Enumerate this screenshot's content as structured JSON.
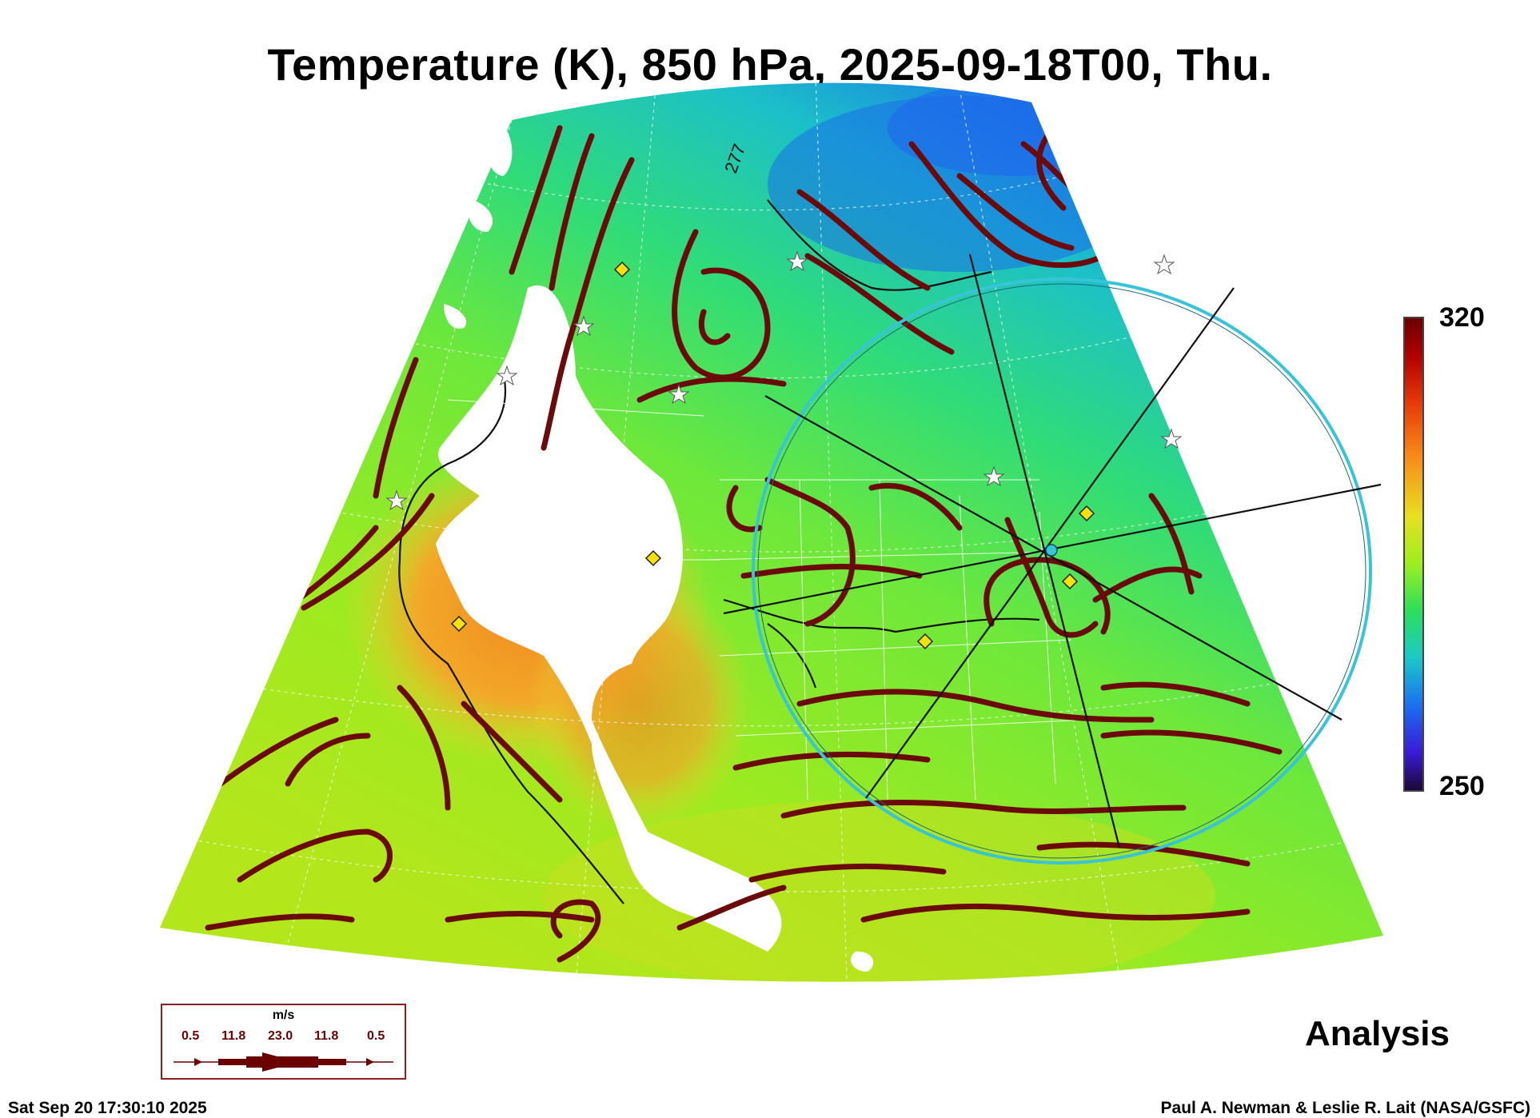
{
  "title": "Temperature (K), 850 hPa, 2025-09-18T00, Thu.",
  "colorbar": {
    "max_label": "320",
    "min_label": "250",
    "range": [
      250,
      320
    ],
    "colors": [
      "#6b0000",
      "#e83a0a",
      "#f7901a",
      "#e8e020",
      "#9cee20",
      "#2ce05a",
      "#1cc8c8",
      "#1a70f0",
      "#3a1ad8",
      "#1c0838"
    ]
  },
  "map": {
    "contour_label": "277",
    "streamline_color": "#6b0a0a",
    "circle_color": "#38c4d8",
    "undefined_color": "#ffffff"
  },
  "wind_legend": {
    "unit": "m/s",
    "values": [
      "0.5",
      "11.8",
      "23.0",
      "11.8",
      "0.5"
    ]
  },
  "panel_label": "Analysis",
  "timestamp": "Sat Sep 20 17:30:10 2025",
  "credit": "Paul A. Newman & Leslie R. Lait (NASA/GSFC)"
}
